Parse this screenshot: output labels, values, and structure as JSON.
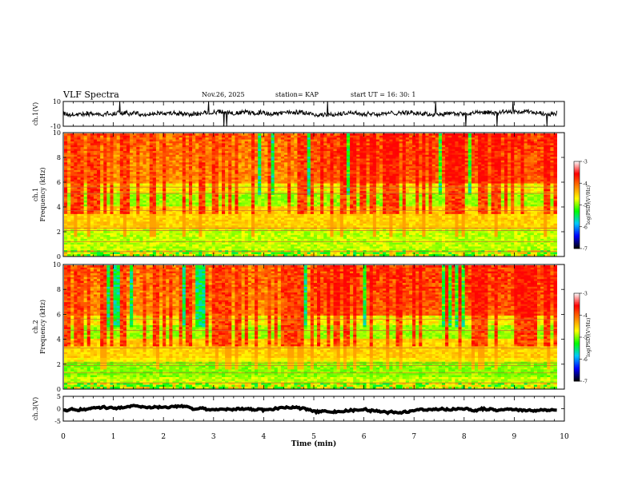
{
  "header": {
    "title": "VLF Spectra",
    "date": "Nov.26, 2025",
    "station": "station= KAP",
    "start_ut": "start  UT =   16: 30: 1"
  },
  "colors": {
    "trace": "#000000",
    "axes": "#000000",
    "colormap": [
      "#000000",
      "#0000ff",
      "#00c8ff",
      "#00ff00",
      "#ffff00",
      "#ff8000",
      "#ff0000",
      "#ffffff"
    ]
  },
  "chart_data": [
    {
      "type": "line",
      "id": "ch1-waveform",
      "ylabel": "ch.1(V)",
      "ylim": [
        -10,
        10
      ],
      "yticks": [
        "10",
        "-10"
      ],
      "xlim": [
        0,
        10
      ],
      "series": [
        {
          "values_description_free": true,
          "pattern": "noise",
          "mean": 0.5,
          "amplitude": 3.5
        }
      ]
    },
    {
      "type": "heatmap",
      "id": "ch1-spectrogram",
      "ylabel_top": "ch.1",
      "ylabel": "Frequency (kHz)",
      "ylim": [
        0,
        10
      ],
      "yticks": [
        "0",
        "2",
        "4",
        "6",
        "8",
        "10"
      ],
      "xlim": [
        0,
        10
      ],
      "colorbar": {
        "label": "log(PSD)(V²/Hz)",
        "range": [
          -7,
          -3
        ],
        "ticks": [
          "-3",
          "-4",
          "-5",
          "-6",
          "-7"
        ]
      },
      "data_end_min": 9.85
    },
    {
      "type": "heatmap",
      "id": "ch2-spectrogram",
      "ylabel_top": "ch.2",
      "ylabel": "Frequency (kHz)",
      "ylim": [
        0,
        10
      ],
      "yticks": [
        "0",
        "2",
        "4",
        "6",
        "8",
        "10"
      ],
      "xlim": [
        0,
        10
      ],
      "colorbar": {
        "label": "log(PSD)(V²/Hz)",
        "range": [
          -7,
          -3
        ],
        "ticks": [
          "-3",
          "-4",
          "-5",
          "-6",
          "-7"
        ]
      },
      "data_end_min": 9.85
    },
    {
      "type": "line",
      "id": "ch3-waveform",
      "ylabel": "ch.3(V)",
      "ylim": [
        -5,
        5
      ],
      "yticks": [
        "5",
        "0",
        "-5"
      ],
      "xlim": [
        0,
        10
      ],
      "series": [
        {
          "pattern": "flat-noise",
          "mean": -0.5,
          "amplitude": 0.5
        }
      ]
    }
  ],
  "xaxis": {
    "label": "Time (min)",
    "ticks": [
      "0",
      "1",
      "2",
      "3",
      "4",
      "5",
      "6",
      "7",
      "8",
      "9",
      "10"
    ]
  }
}
